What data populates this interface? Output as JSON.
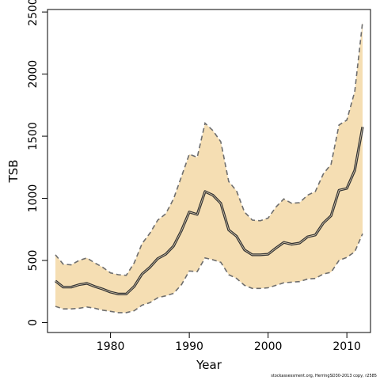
{
  "chart_data": {
    "type": "area",
    "title": "",
    "xlabel": "Year",
    "ylabel": "TSB",
    "xlim": [
      1972,
      2013
    ],
    "ylim": [
      -80,
      2520
    ],
    "xticks": [
      1980,
      1990,
      2000,
      2010
    ],
    "yticks": [
      0,
      500,
      1000,
      1500,
      2000,
      2500
    ],
    "grid": false,
    "colors": {
      "band": "#f5deb3",
      "estimate": "#333333",
      "bounds": "#6e6e6e"
    },
    "x": [
      1973,
      1974,
      1975,
      1976,
      1977,
      1978,
      1979,
      1980,
      1981,
      1982,
      1983,
      1984,
      1985,
      1986,
      1987,
      1988,
      1989,
      1990,
      1991,
      1992,
      1993,
      1994,
      1995,
      1996,
      1997,
      1998,
      1999,
      2000,
      2001,
      2002,
      2003,
      2004,
      2005,
      2006,
      2007,
      2008,
      2009,
      2010,
      2011,
      2012
    ],
    "series": [
      {
        "role": "estimate",
        "values": [
          335,
          285,
          285,
          305,
          315,
          290,
          270,
          245,
          230,
          230,
          290,
          390,
          445,
          515,
          550,
          615,
          740,
          890,
          870,
          1055,
          1025,
          960,
          745,
          695,
          585,
          545,
          545,
          550,
          600,
          645,
          630,
          640,
          690,
          705,
          800,
          860,
          1065,
          1080,
          1225,
          1575
        ]
      },
      {
        "role": "upper",
        "values": [
          545,
          470,
          465,
          500,
          520,
          480,
          445,
          400,
          385,
          380,
          480,
          635,
          720,
          825,
          875,
          995,
          1175,
          1355,
          1330,
          1605,
          1545,
          1455,
          1135,
          1060,
          890,
          825,
          820,
          840,
          930,
          995,
          960,
          965,
          1025,
          1055,
          1195,
          1275,
          1590,
          1630,
          1860,
          2420
        ]
      },
      {
        "role": "lower",
        "values": [
          130,
          110,
          110,
          115,
          125,
          115,
          100,
          90,
          80,
          80,
          95,
          140,
          160,
          200,
          215,
          235,
          305,
          415,
          410,
          520,
          505,
          485,
          385,
          355,
          300,
          275,
          275,
          280,
          300,
          320,
          325,
          330,
          350,
          355,
          390,
          405,
          500,
          525,
          570,
          715
        ]
      }
    ]
  },
  "footnote": "stockassessment.org, HerringSD30-2013  copy, r2585"
}
